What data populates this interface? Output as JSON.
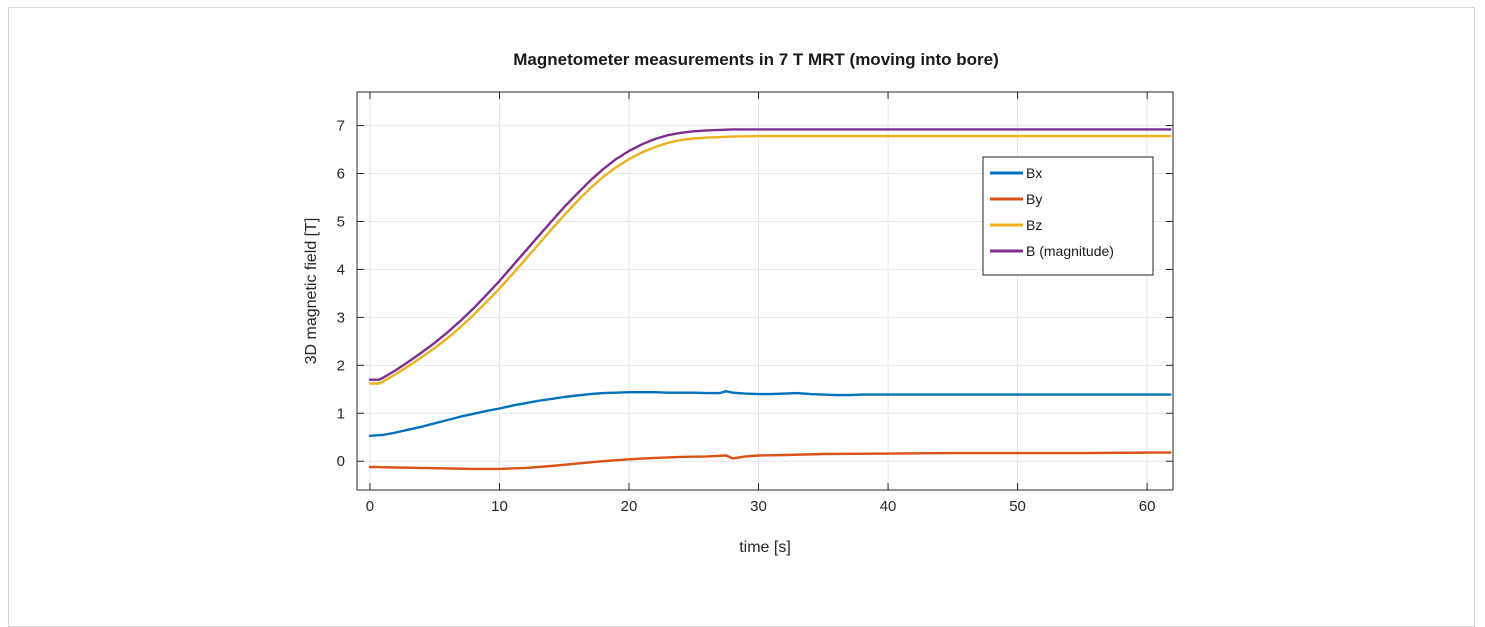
{
  "chart_data": {
    "type": "line",
    "title": "Magnetometer measurements in 7 T MRT (moving into bore)",
    "xlabel": "time [s]",
    "ylabel": "3D magnetic field [T]",
    "xlim": [
      -1,
      62
    ],
    "ylim": [
      -0.6,
      7.7
    ],
    "xticks": [
      0,
      10,
      20,
      30,
      40,
      50,
      60
    ],
    "yticks": [
      0,
      1,
      2,
      3,
      4,
      5,
      6,
      7
    ],
    "xtick_labels": [
      "0",
      "10",
      "20",
      "30",
      "40",
      "50",
      "60"
    ],
    "ytick_labels": [
      "0",
      "1",
      "2",
      "3",
      "4",
      "5",
      "6",
      "7"
    ],
    "grid": true,
    "legend_position": "upper-right",
    "colors": {
      "Bx": "#0072BD",
      "By": "#D95319",
      "Bz": "#EDB120",
      "B": "#7E2F8E"
    },
    "series": [
      {
        "name": "Bx",
        "color": "#0072BD",
        "x": [
          0,
          1,
          2,
          3,
          4,
          5,
          6,
          7,
          8,
          9,
          10,
          11,
          12,
          13,
          14,
          15,
          16,
          17,
          18,
          19,
          20,
          21,
          22,
          23,
          24,
          25,
          26,
          27,
          27.5,
          28,
          29,
          30,
          31,
          32,
          33,
          34,
          35,
          36,
          37,
          38,
          40,
          45,
          50,
          55,
          60,
          61.8
        ],
        "values": [
          0.53,
          0.55,
          0.6,
          0.66,
          0.72,
          0.79,
          0.86,
          0.93,
          0.99,
          1.05,
          1.1,
          1.16,
          1.21,
          1.26,
          1.3,
          1.34,
          1.37,
          1.4,
          1.42,
          1.43,
          1.44,
          1.44,
          1.44,
          1.43,
          1.43,
          1.43,
          1.42,
          1.42,
          1.46,
          1.43,
          1.41,
          1.4,
          1.4,
          1.41,
          1.42,
          1.4,
          1.39,
          1.38,
          1.38,
          1.39,
          1.39,
          1.39,
          1.39,
          1.39,
          1.39,
          1.39
        ]
      },
      {
        "name": "By",
        "color": "#D95319",
        "x": [
          0,
          2,
          4,
          6,
          8,
          10,
          12,
          14,
          16,
          18,
          20,
          22,
          24,
          26,
          27.5,
          28,
          29,
          30,
          32,
          35,
          40,
          45,
          50,
          55,
          60,
          61.8
        ],
        "values": [
          -0.12,
          -0.13,
          -0.14,
          -0.15,
          -0.16,
          -0.16,
          -0.14,
          -0.1,
          -0.05,
          0.0,
          0.04,
          0.07,
          0.09,
          0.1,
          0.12,
          0.06,
          0.1,
          0.12,
          0.13,
          0.15,
          0.16,
          0.17,
          0.17,
          0.17,
          0.18,
          0.18
        ]
      },
      {
        "name": "Bz",
        "color": "#EDB120",
        "x": [
          0,
          0.7,
          1,
          2,
          3,
          4,
          5,
          6,
          7,
          8,
          9,
          10,
          11,
          12,
          13,
          14,
          15,
          16,
          17,
          18,
          19,
          20,
          21,
          22,
          23,
          24,
          25,
          26,
          27,
          28,
          30,
          35,
          40,
          45,
          50,
          55,
          60,
          61.8
        ],
        "values": [
          1.62,
          1.62,
          1.66,
          1.82,
          1.99,
          2.17,
          2.36,
          2.57,
          2.8,
          3.05,
          3.32,
          3.6,
          3.9,
          4.21,
          4.52,
          4.83,
          5.13,
          5.42,
          5.69,
          5.93,
          6.13,
          6.3,
          6.44,
          6.55,
          6.64,
          6.7,
          6.73,
          6.75,
          6.76,
          6.77,
          6.78,
          6.78,
          6.78,
          6.78,
          6.78,
          6.78,
          6.78,
          6.78
        ]
      },
      {
        "name": "B (magnitude)",
        "color": "#7E2F8E",
        "x": [
          0,
          0.7,
          1,
          2,
          3,
          4,
          5,
          6,
          7,
          8,
          9,
          10,
          11,
          12,
          13,
          14,
          15,
          16,
          17,
          18,
          19,
          20,
          21,
          22,
          23,
          24,
          25,
          26,
          27,
          28,
          30,
          35,
          40,
          45,
          50,
          55,
          60,
          61.8
        ],
        "values": [
          1.7,
          1.7,
          1.74,
          1.9,
          2.08,
          2.27,
          2.47,
          2.69,
          2.93,
          3.19,
          3.47,
          3.76,
          4.07,
          4.38,
          4.69,
          5.0,
          5.3,
          5.58,
          5.85,
          6.09,
          6.3,
          6.47,
          6.61,
          6.72,
          6.8,
          6.85,
          6.88,
          6.9,
          6.91,
          6.92,
          6.92,
          6.92,
          6.92,
          6.92,
          6.92,
          6.92,
          6.92,
          6.92
        ]
      }
    ]
  }
}
